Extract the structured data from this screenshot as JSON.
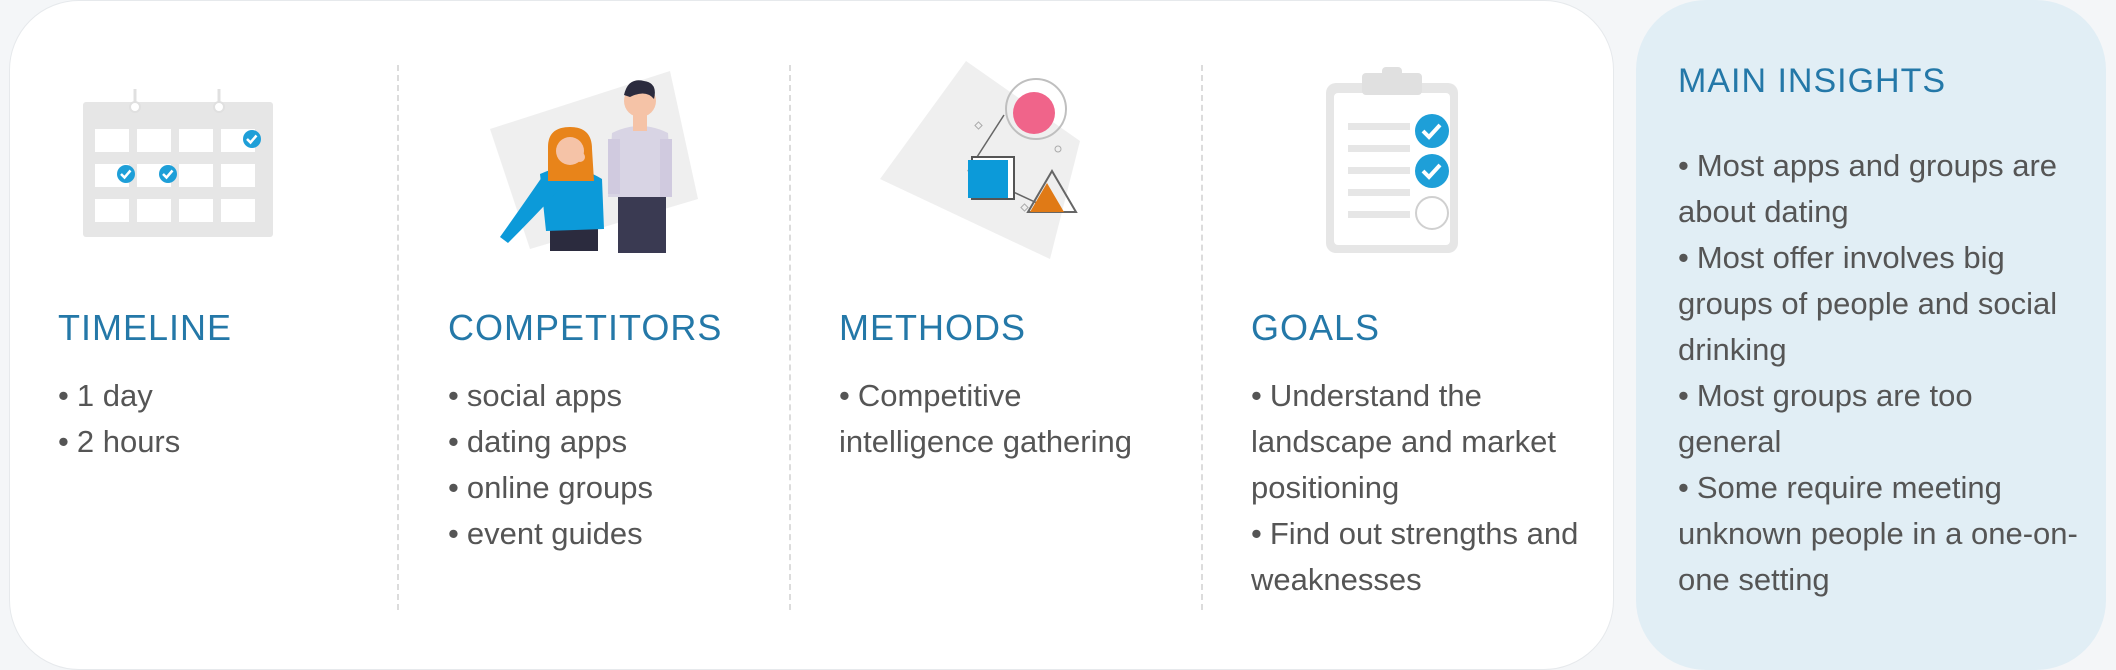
{
  "columns": [
    {
      "id": "timeline",
      "title": "TIMELINE",
      "icon": "calendar-icon",
      "bullets": [
        "1 day",
        "2 hours"
      ]
    },
    {
      "id": "competitors",
      "title": "COMPETITORS",
      "icon": "people-illustration",
      "bullets": [
        "social apps",
        "dating apps",
        "online groups",
        "event guides"
      ]
    },
    {
      "id": "methods",
      "title": "METHODS",
      "icon": "shapes-illustration",
      "bullets": [
        "Competitive intelligence gathering"
      ]
    },
    {
      "id": "goals",
      "title": "GOALS",
      "icon": "checklist-clipboard-icon",
      "bullets": [
        "Understand the landscape and market positioning",
        "Find out strengths and weaknesses"
      ]
    }
  ],
  "insights": {
    "title": "MAIN INSIGHTS",
    "bullets": [
      "Most apps and groups are about dating",
      "Most offer involves big groups of people and social drinking",
      "Most groups are too general",
      "Some require meeting unknown people in a one-on-one setting"
    ]
  },
  "colors": {
    "accent_blue": "#2478a8",
    "check_blue": "#1e9fd8",
    "jacket_blue": "#0c9ad9",
    "pink": "#f0648a",
    "orange": "#e07a16",
    "hair_orange": "#e8841a",
    "insights_bg": "#e1eef5",
    "text_gray": "#555555"
  }
}
